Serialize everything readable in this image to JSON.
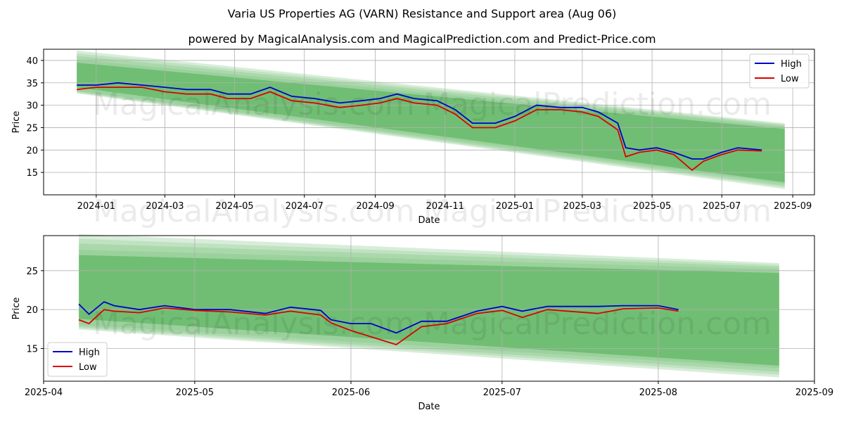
{
  "title": "Varia US Properties AG (VARN) Resistance and Support area (Aug 06)",
  "subtitle": "powered by MagicalAnalysis.com and MagicalPrediction.com and Predict-Price.com",
  "watermarks": [
    "MagicalAnalysis.com",
    "MagicalPrediction.com"
  ],
  "colors": {
    "high": "#0000cc",
    "low": "#dd0000",
    "band": "#4caf50"
  },
  "chart_data": [
    {
      "type": "line",
      "xlabel": "Date",
      "ylabel": "Price",
      "xlim": [
        "2023-11-16",
        "2025-09-20"
      ],
      "ylim": [
        10,
        42.5
      ],
      "xticks": [
        "2024-01",
        "2024-03",
        "2024-05",
        "2024-07",
        "2024-09",
        "2024-11",
        "2025-01",
        "2025-03",
        "2025-05",
        "2025-07",
        "2025-09"
      ],
      "yticks": [
        15,
        20,
        25,
        30,
        35,
        40
      ],
      "grid": true,
      "legend": "top-right",
      "band": {
        "x_start": "2023-12-15",
        "x_end": "2025-08-25",
        "top_start": 41,
        "top_end": 25.5,
        "bottom_start": 33,
        "bottom_end": 12
      },
      "series": [
        {
          "name": "High",
          "x": [
            "2023-12-15",
            "2024-01-01",
            "2024-01-20",
            "2024-02-10",
            "2024-03-01",
            "2024-03-20",
            "2024-04-10",
            "2024-04-25",
            "2024-05-15",
            "2024-06-01",
            "2024-06-20",
            "2024-07-10",
            "2024-08-01",
            "2024-08-20",
            "2024-09-05",
            "2024-09-20",
            "2024-10-05",
            "2024-10-25",
            "2024-11-10",
            "2024-11-25",
            "2024-12-15",
            "2025-01-01",
            "2025-01-20",
            "2025-02-10",
            "2025-03-01",
            "2025-03-15",
            "2025-04-01",
            "2025-04-08",
            "2025-04-20",
            "2025-05-05",
            "2025-05-20",
            "2025-06-05",
            "2025-06-15",
            "2025-07-01",
            "2025-07-15",
            "2025-08-05"
          ],
          "values": [
            34.5,
            34.5,
            35,
            34.5,
            34,
            33.5,
            33.5,
            32.5,
            32.5,
            34,
            32,
            31.5,
            30.5,
            31,
            31.5,
            32.5,
            31.5,
            31,
            29,
            26,
            26,
            27.5,
            30,
            29.5,
            29.5,
            28.5,
            26,
            20.5,
            20,
            20.5,
            19.5,
            18,
            18,
            19.5,
            20.5,
            20
          ]
        },
        {
          "name": "Low",
          "x": [
            "2023-12-15",
            "2024-01-01",
            "2024-01-20",
            "2024-02-10",
            "2024-03-01",
            "2024-03-20",
            "2024-04-10",
            "2024-04-25",
            "2024-05-15",
            "2024-06-01",
            "2024-06-20",
            "2024-07-10",
            "2024-08-01",
            "2024-08-20",
            "2024-09-05",
            "2024-09-20",
            "2024-10-05",
            "2024-10-25",
            "2024-11-10",
            "2024-11-25",
            "2024-12-15",
            "2025-01-01",
            "2025-01-20",
            "2025-02-10",
            "2025-03-01",
            "2025-03-15",
            "2025-04-01",
            "2025-04-08",
            "2025-04-20",
            "2025-05-05",
            "2025-05-20",
            "2025-06-05",
            "2025-06-15",
            "2025-07-01",
            "2025-07-15",
            "2025-08-05"
          ],
          "values": [
            33.5,
            34,
            34,
            34,
            33,
            32.5,
            32.5,
            31.5,
            31.5,
            33,
            31,
            30.5,
            29.5,
            30,
            30.5,
            31.5,
            30.5,
            30,
            28,
            25,
            25,
            26.5,
            29,
            29,
            28.5,
            27.5,
            24.5,
            18.5,
            19.5,
            20,
            19,
            15.5,
            17.5,
            19,
            20,
            19.8
          ]
        }
      ]
    },
    {
      "type": "line",
      "xlabel": "Date",
      "ylabel": "Price",
      "xlim": [
        "2025-04-01",
        "2025-09-01"
      ],
      "ylim": [
        10.8,
        29.5
      ],
      "xticks": [
        "2025-04",
        "2025-05",
        "2025-06",
        "2025-07",
        "2025-08",
        "2025-09"
      ],
      "yticks": [
        15,
        20,
        25
      ],
      "grid": true,
      "legend": "bottom-left",
      "band": {
        "x_start": "2025-04-08",
        "x_end": "2025-08-25",
        "top_start": 28.5,
        "top_end": 25.5,
        "bottom_start": 17.8,
        "bottom_end": 12
      },
      "series": [
        {
          "name": "High",
          "x": [
            "2025-04-08",
            "2025-04-10",
            "2025-04-13",
            "2025-04-15",
            "2025-04-20",
            "2025-04-25",
            "2025-05-01",
            "2025-05-08",
            "2025-05-15",
            "2025-05-20",
            "2025-05-26",
            "2025-05-28",
            "2025-06-01",
            "2025-06-05",
            "2025-06-10",
            "2025-06-15",
            "2025-06-20",
            "2025-06-26",
            "2025-07-01",
            "2025-07-05",
            "2025-07-10",
            "2025-07-20",
            "2025-07-25",
            "2025-08-01",
            "2025-08-05"
          ],
          "values": [
            20.7,
            19.4,
            21,
            20.5,
            20,
            20.5,
            20,
            20,
            19.5,
            20.3,
            19.9,
            18.7,
            18.2,
            18.2,
            17,
            18.5,
            18.5,
            19.8,
            20.4,
            19.8,
            20.4,
            20.4,
            20.5,
            20.5,
            20
          ]
        },
        {
          "name": "Low",
          "x": [
            "2025-04-08",
            "2025-04-10",
            "2025-04-13",
            "2025-04-15",
            "2025-04-20",
            "2025-04-25",
            "2025-05-01",
            "2025-05-08",
            "2025-05-15",
            "2025-05-20",
            "2025-05-26",
            "2025-05-28",
            "2025-06-01",
            "2025-06-05",
            "2025-06-10",
            "2025-06-15",
            "2025-06-20",
            "2025-06-26",
            "2025-07-01",
            "2025-07-05",
            "2025-07-10",
            "2025-07-20",
            "2025-07-25",
            "2025-08-01",
            "2025-08-05"
          ],
          "values": [
            18.7,
            18.2,
            20,
            19.8,
            19.6,
            20.2,
            19.9,
            19.7,
            19.3,
            19.8,
            19.3,
            18.3,
            17.3,
            16.5,
            15.5,
            17.8,
            18.2,
            19.5,
            19.9,
            19,
            20,
            19.5,
            20.1,
            20.2,
            19.8
          ]
        }
      ]
    }
  ]
}
